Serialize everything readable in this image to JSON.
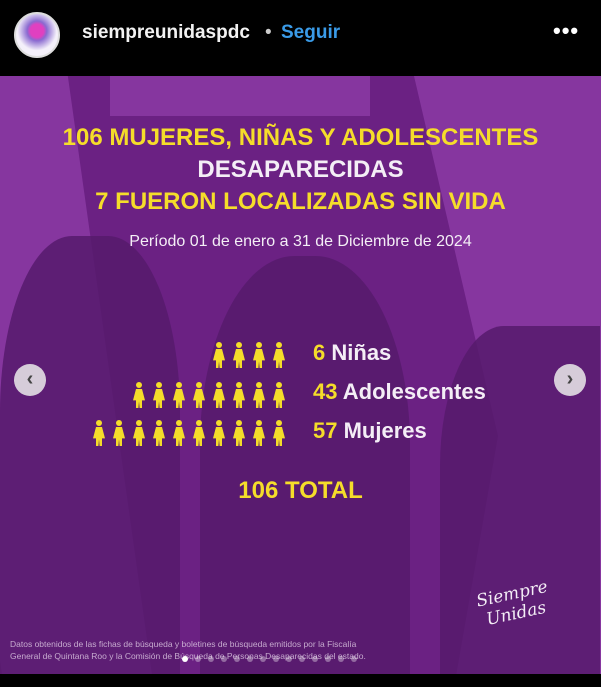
{
  "header": {
    "username": "siempreunidaspdc",
    "separator": "•",
    "follow_label": "Seguir",
    "more_icon": "•••"
  },
  "post": {
    "title_line1": "106 MUJERES, NIÑAS Y ADOLESCENTES",
    "title_line2": "DESAPARECIDAS",
    "title_line3": "7 FUERON LOCALIZADAS SIN VIDA",
    "period": "Período 01 de enero a 31 de Diciembre de 2024",
    "stats": [
      {
        "number": "6",
        "label": "Niñas",
        "icon_count": 4
      },
      {
        "number": "43",
        "label": "Adolescentes",
        "icon_count": 8
      },
      {
        "number": "57",
        "label": "Mujeres",
        "icon_count": 10
      }
    ],
    "total": "106 TOTAL",
    "footnote_line1": "Datos obtenidos de las fichas de búsqueda y boletines de búsqueda emitidos por la Fiscalía",
    "footnote_line2": "General de Quintana Roo y la Comisión de Búsqueda de Personas Desaparecidas del estado.",
    "logo_text": "Siempre Unidas",
    "carousel": {
      "total_slides": 14,
      "active_index": 0
    },
    "colors": {
      "accent_yellow": "#f5dd2a",
      "background_purple": "#6b2183",
      "link_blue": "#3a9be8"
    }
  },
  "nav": {
    "prev_icon": "‹",
    "next_icon": "›"
  }
}
